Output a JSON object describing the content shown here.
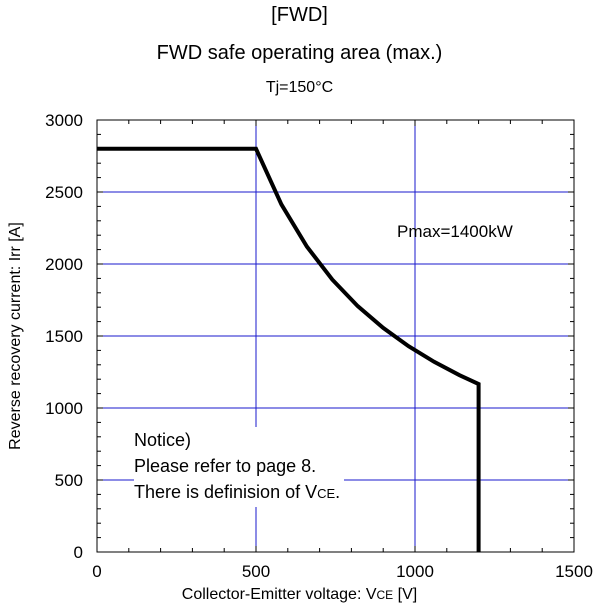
{
  "header": {
    "line1": "[FWD]",
    "line2": "FWD safe operating area (max.)",
    "line3": "Tj=150°C"
  },
  "axes": {
    "ylabel": "Reverse recovery current: Irr [A]",
    "xlabel_prefix": "Collector-Emitter voltage: V",
    "xlabel_sub": "CE",
    "xlabel_suffix": " [V]"
  },
  "annotation": "Pmax=1400kW",
  "notice": {
    "line1": "Notice)",
    "line2": "Please refer to page 8.",
    "line3_prefix": "There is definision of V",
    "line3_sub": "CE",
    "line3_suffix": "."
  },
  "colors": {
    "grid": "#1a1acc",
    "curve": "#000000"
  },
  "chart_data": {
    "type": "line",
    "title": "FWD safe operating area (max.)",
    "subtitle": "Tj=150°C",
    "xlabel": "Collector-Emitter voltage: VCE [V]",
    "ylabel": "Reverse recovery current: Irr [A]",
    "xlim": [
      0,
      1500
    ],
    "ylim": [
      0,
      3000
    ],
    "xticks": [
      0,
      500,
      1000,
      1500
    ],
    "yticks": [
      0,
      500,
      1000,
      1500,
      2000,
      2500,
      3000
    ],
    "grid": true,
    "series": [
      {
        "x": [
          0,
          500,
          580,
          660,
          740,
          820,
          900,
          980,
          1060,
          1140,
          1200,
          1200
        ],
        "values": [
          2800,
          2800,
          2414,
          2121,
          1892,
          1707,
          1556,
          1429,
          1321,
          1228,
          1167,
          0
        ]
      }
    ]
  }
}
